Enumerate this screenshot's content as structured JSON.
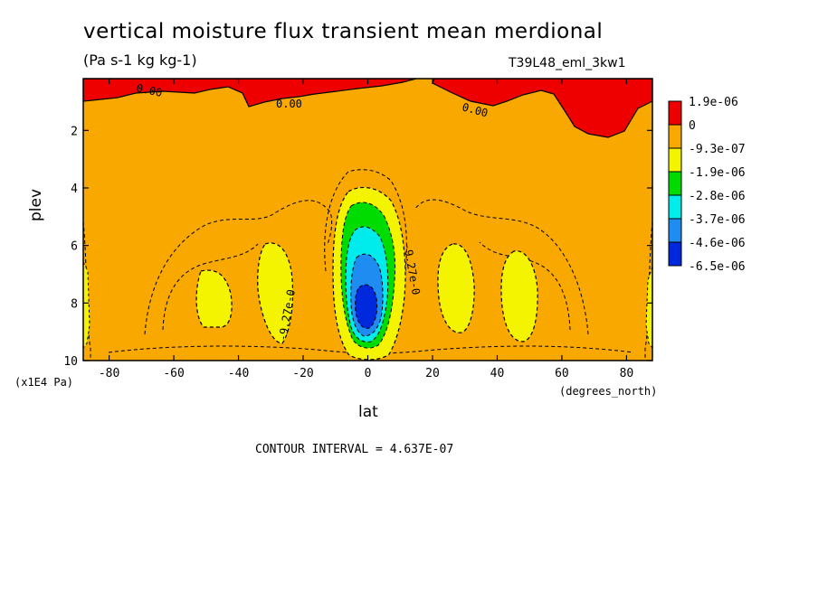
{
  "chart_data": {
    "type": "heatmap",
    "title": "vertical moisture flux transient mean merdional",
    "units": "(Pa s-1 kg kg-1)",
    "dataset": "T39L48_eml_3kw1",
    "xlabel": "lat",
    "x_units": "(degrees_north)",
    "ylabel": "plev",
    "y_units": "(x1E4 Pa)",
    "xlim": [
      -88,
      88
    ],
    "ylim": [
      0.2,
      10
    ],
    "y_inverted": true,
    "x_ticks": [
      "-80",
      "-60",
      "-40",
      "-20",
      "0",
      "20",
      "40",
      "60",
      "80"
    ],
    "y_ticks": [
      "2",
      "4",
      "6",
      "8",
      "10"
    ],
    "colorbar": {
      "labels": [
        "1.9e-06",
        "0",
        "-9.3e-07",
        "-1.9e-06",
        "-2.8e-06",
        "-3.7e-06",
        "-4.6e-06",
        "-6.5e-06"
      ],
      "colors": [
        "#ee0000",
        "#f9a800",
        "#f4f400",
        "#00dc00",
        "#00ecec",
        "#1e8cf0",
        "#0028dc"
      ]
    },
    "contour_labels": [
      {
        "text": "0.00",
        "lat": -72,
        "plev": 0.5
      },
      {
        "text": "0.00",
        "lat": -25,
        "plev": 1.1
      },
      {
        "text": "0.00",
        "lat": 33,
        "plev": 1.3
      },
      {
        "text": "-9.27e-0",
        "lat": -27,
        "plev": 8.0
      },
      {
        "text": "-9.27e-0",
        "lat": 14,
        "plev": 7.3
      }
    ],
    "contour_interval": "CONTOUR INTERVAL = 4.637E-07"
  }
}
